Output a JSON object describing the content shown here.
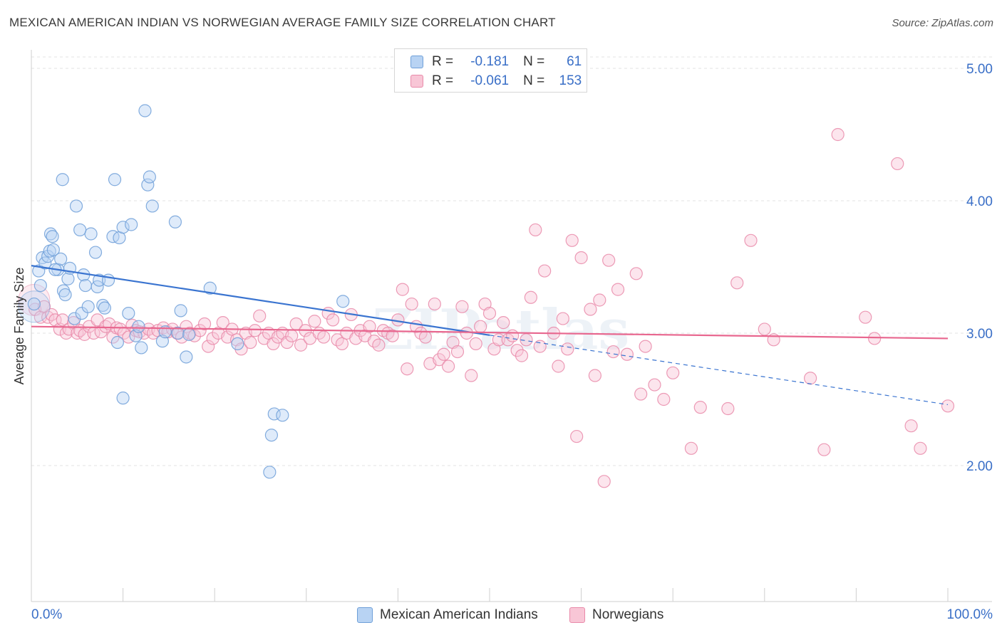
{
  "title": "MEXICAN AMERICAN INDIAN VS NORWEGIAN AVERAGE FAMILY SIZE CORRELATION CHART",
  "source": "Source: ZipAtlas.com",
  "legend": {
    "r_label": "R =",
    "n_label": "N =",
    "series": [
      {
        "r": "-0.181",
        "n": "61"
      },
      {
        "r": "-0.061",
        "n": "153"
      }
    ]
  },
  "bottom_legend": [
    "Mexican American Indians",
    "Norwegians"
  ],
  "colors": {
    "blue_fill": "#b8d3f3",
    "blue_stroke": "#6e9fd8",
    "blue_line": "#3a74d0",
    "pink_fill": "#f8c6d6",
    "pink_stroke": "#e98aa9",
    "pink_line": "#e8678f",
    "tick_label": "#3a6fc7",
    "grid": "#e3e3e3"
  },
  "chart_data": {
    "type": "scatter",
    "ylabel": "Average Family Size",
    "xlim": [
      0,
      100
    ],
    "ylim": [
      1.2,
      5.1
    ],
    "x_tick_labels": [
      "0.0%",
      "100.0%"
    ],
    "y_ticks": [
      2.0,
      3.0,
      4.0,
      5.0
    ],
    "y_tick_labels": [
      "2.00",
      "3.00",
      "4.00",
      "5.00"
    ],
    "grid": true,
    "watermark": "ZIPatlas",
    "series": [
      {
        "color": "blue",
        "trend": {
          "x0": 0,
          "y0": 3.51,
          "x_solid_end": 50,
          "x1": 100,
          "y1": 2.46
        },
        "points": [
          [
            0.3,
            3.22
          ],
          [
            0.8,
            3.47
          ],
          [
            1.2,
            3.57
          ],
          [
            1.5,
            3.53
          ],
          [
            1.8,
            3.58
          ],
          [
            2.0,
            3.62
          ],
          [
            2.1,
            3.75
          ],
          [
            2.3,
            3.73
          ],
          [
            2.4,
            3.63
          ],
          [
            2.9,
            3.48
          ],
          [
            3.2,
            3.56
          ],
          [
            3.5,
            3.32
          ],
          [
            3.7,
            3.29
          ],
          [
            4.0,
            3.41
          ],
          [
            4.2,
            3.49
          ],
          [
            4.7,
            3.11
          ],
          [
            4.9,
            3.96
          ],
          [
            5.5,
            3.15
          ],
          [
            5.7,
            3.44
          ],
          [
            5.9,
            3.36
          ],
          [
            6.2,
            3.2
          ],
          [
            6.5,
            3.75
          ],
          [
            7.0,
            3.61
          ],
          [
            7.2,
            3.35
          ],
          [
            7.4,
            3.4
          ],
          [
            7.8,
            3.21
          ],
          [
            8.0,
            3.19
          ],
          [
            8.4,
            3.4
          ],
          [
            8.9,
            3.73
          ],
          [
            9.1,
            4.16
          ],
          [
            9.4,
            2.93
          ],
          [
            9.6,
            3.72
          ],
          [
            10.0,
            3.8
          ],
          [
            10.6,
            3.15
          ],
          [
            10.9,
            3.82
          ],
          [
            11.4,
            2.98
          ],
          [
            11.7,
            3.05
          ],
          [
            12.0,
            2.89
          ],
          [
            12.4,
            4.68
          ],
          [
            12.7,
            4.12
          ],
          [
            12.9,
            4.18
          ],
          [
            13.2,
            3.96
          ],
          [
            14.3,
            2.94
          ],
          [
            14.6,
            3.01
          ],
          [
            15.7,
            3.84
          ],
          [
            16.0,
            3.0
          ],
          [
            16.3,
            3.17
          ],
          [
            16.9,
            2.82
          ],
          [
            17.2,
            2.99
          ],
          [
            19.5,
            3.34
          ],
          [
            22.5,
            2.92
          ],
          [
            26.0,
            1.95
          ],
          [
            26.2,
            2.23
          ],
          [
            26.5,
            2.39
          ],
          [
            27.4,
            2.38
          ],
          [
            34.0,
            3.24
          ],
          [
            3.4,
            4.16
          ],
          [
            10.0,
            2.51
          ],
          [
            5.3,
            3.78
          ],
          [
            1.0,
            3.36
          ],
          [
            2.6,
            3.48
          ]
        ],
        "large_points": [
          [
            0.3,
            3.2
          ]
        ]
      },
      {
        "color": "pink",
        "trend": {
          "x0": 0,
          "y0": 3.05,
          "x1": 100,
          "y1": 2.96
        },
        "points": [
          [
            0.4,
            3.18
          ],
          [
            1.0,
            3.12
          ],
          [
            1.4,
            3.2
          ],
          [
            1.8,
            3.12
          ],
          [
            2.2,
            3.14
          ],
          [
            2.6,
            3.1
          ],
          [
            3.1,
            3.03
          ],
          [
            3.4,
            3.1
          ],
          [
            3.8,
            3.0
          ],
          [
            4.1,
            3.03
          ],
          [
            4.6,
            3.08
          ],
          [
            5.0,
            3.0
          ],
          [
            5.3,
            3.02
          ],
          [
            5.8,
            2.99
          ],
          [
            6.3,
            3.05
          ],
          [
            6.8,
            3.0
          ],
          [
            7.2,
            3.1
          ],
          [
            7.6,
            3.01
          ],
          [
            8.1,
            3.05
          ],
          [
            8.5,
            3.07
          ],
          [
            8.9,
            2.97
          ],
          [
            9.3,
            3.04
          ],
          [
            9.7,
            3.03
          ],
          [
            10.1,
            3.0
          ],
          [
            10.6,
            2.97
          ],
          [
            11.0,
            3.06
          ],
          [
            11.4,
            3.02
          ],
          [
            11.8,
            3.01
          ],
          [
            12.3,
            3.0
          ],
          [
            12.8,
            3.03
          ],
          [
            13.3,
            3.0
          ],
          [
            13.8,
            3.02
          ],
          [
            14.4,
            3.04
          ],
          [
            14.9,
            3.01
          ],
          [
            15.4,
            3.03
          ],
          [
            15.9,
            3.0
          ],
          [
            16.4,
            2.97
          ],
          [
            16.9,
            3.05
          ],
          [
            17.3,
            3.0
          ],
          [
            17.8,
            2.98
          ],
          [
            18.4,
            3.02
          ],
          [
            18.9,
            3.07
          ],
          [
            19.3,
            2.9
          ],
          [
            19.8,
            2.96
          ],
          [
            20.4,
            3.0
          ],
          [
            20.9,
            3.08
          ],
          [
            21.4,
            2.97
          ],
          [
            21.9,
            3.03
          ],
          [
            22.4,
            2.95
          ],
          [
            22.9,
            2.88
          ],
          [
            23.4,
            3.0
          ],
          [
            23.9,
            2.93
          ],
          [
            24.4,
            3.02
          ],
          [
            24.9,
            3.13
          ],
          [
            25.4,
            2.96
          ],
          [
            25.9,
            3.0
          ],
          [
            26.4,
            2.92
          ],
          [
            26.9,
            2.97
          ],
          [
            27.4,
            3.0
          ],
          [
            27.9,
            2.93
          ],
          [
            28.4,
            2.98
          ],
          [
            28.9,
            3.07
          ],
          [
            29.4,
            2.91
          ],
          [
            29.9,
            3.02
          ],
          [
            30.4,
            2.96
          ],
          [
            30.9,
            3.09
          ],
          [
            31.4,
            3.0
          ],
          [
            31.9,
            2.97
          ],
          [
            32.4,
            3.15
          ],
          [
            32.9,
            3.1
          ],
          [
            33.4,
            2.95
          ],
          [
            33.9,
            2.92
          ],
          [
            34.4,
            3.0
          ],
          [
            34.9,
            3.14
          ],
          [
            35.4,
            2.96
          ],
          [
            35.9,
            3.02
          ],
          [
            36.4,
            2.98
          ],
          [
            36.9,
            3.05
          ],
          [
            37.4,
            2.94
          ],
          [
            37.9,
            2.91
          ],
          [
            38.4,
            3.02
          ],
          [
            38.9,
            3.0
          ],
          [
            39.4,
            2.98
          ],
          [
            40.0,
            3.1
          ],
          [
            40.5,
            3.33
          ],
          [
            41.0,
            2.73
          ],
          [
            41.5,
            3.22
          ],
          [
            42.0,
            3.05
          ],
          [
            42.5,
            3.0
          ],
          [
            43.0,
            2.97
          ],
          [
            43.5,
            2.77
          ],
          [
            44.0,
            3.22
          ],
          [
            44.5,
            2.8
          ],
          [
            45.0,
            2.84
          ],
          [
            45.5,
            2.75
          ],
          [
            46.0,
            2.93
          ],
          [
            46.5,
            2.86
          ],
          [
            47.0,
            3.2
          ],
          [
            47.5,
            3.0
          ],
          [
            48.0,
            2.68
          ],
          [
            48.5,
            2.92
          ],
          [
            49.0,
            3.05
          ],
          [
            49.5,
            3.22
          ],
          [
            50.0,
            3.15
          ],
          [
            50.5,
            2.88
          ],
          [
            51.0,
            2.95
          ],
          [
            51.5,
            3.08
          ],
          [
            52.0,
            2.95
          ],
          [
            52.5,
            2.98
          ],
          [
            53.0,
            2.87
          ],
          [
            53.5,
            2.83
          ],
          [
            54.0,
            2.95
          ],
          [
            54.5,
            3.27
          ],
          [
            55.0,
            3.78
          ],
          [
            55.5,
            2.9
          ],
          [
            56.0,
            3.47
          ],
          [
            57.0,
            3.0
          ],
          [
            57.5,
            2.75
          ],
          [
            58.0,
            3.11
          ],
          [
            58.5,
            2.88
          ],
          [
            59.0,
            3.7
          ],
          [
            60.0,
            3.57
          ],
          [
            61.0,
            3.18
          ],
          [
            61.5,
            2.68
          ],
          [
            62.0,
            3.25
          ],
          [
            63.0,
            3.55
          ],
          [
            63.5,
            2.86
          ],
          [
            64.0,
            3.33
          ],
          [
            65.0,
            2.84
          ],
          [
            66.0,
            3.45
          ],
          [
            67.0,
            2.9
          ],
          [
            68.0,
            2.61
          ],
          [
            69.0,
            2.5
          ],
          [
            70.0,
            2.7
          ],
          [
            72.0,
            2.13
          ],
          [
            73.0,
            2.44
          ],
          [
            76.0,
            2.43
          ],
          [
            77.0,
            3.38
          ],
          [
            78.5,
            3.7
          ],
          [
            80.0,
            3.03
          ],
          [
            81.0,
            2.95
          ],
          [
            85.0,
            2.66
          ],
          [
            86.5,
            2.12
          ],
          [
            88.0,
            4.5
          ],
          [
            91.0,
            3.12
          ],
          [
            92.0,
            2.96
          ],
          [
            94.5,
            4.28
          ],
          [
            96.0,
            2.3
          ],
          [
            97.0,
            2.13
          ],
          [
            100.0,
            2.45
          ],
          [
            59.5,
            2.22
          ],
          [
            62.5,
            1.88
          ],
          [
            66.5,
            2.54
          ]
        ],
        "large_points": [
          [
            0.3,
            3.25
          ]
        ]
      }
    ]
  }
}
